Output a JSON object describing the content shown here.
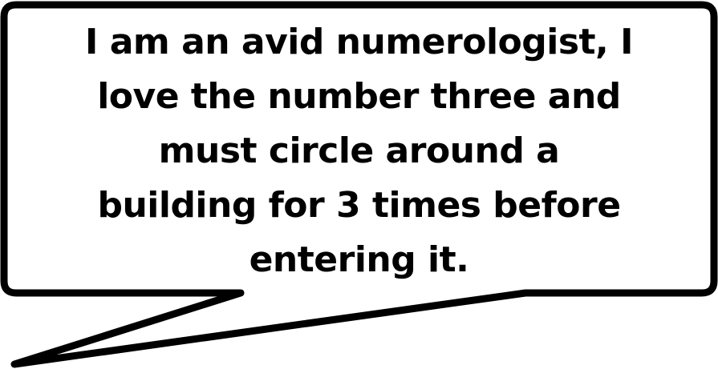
{
  "bubble": {
    "text": "I am an avid numerologist, I\nlove the number three and\nmust circle around a\nbuilding for 3 times before\nentering it.",
    "fill_color": "#ffffff",
    "stroke_color": "#000000",
    "text_color": "#000000"
  }
}
